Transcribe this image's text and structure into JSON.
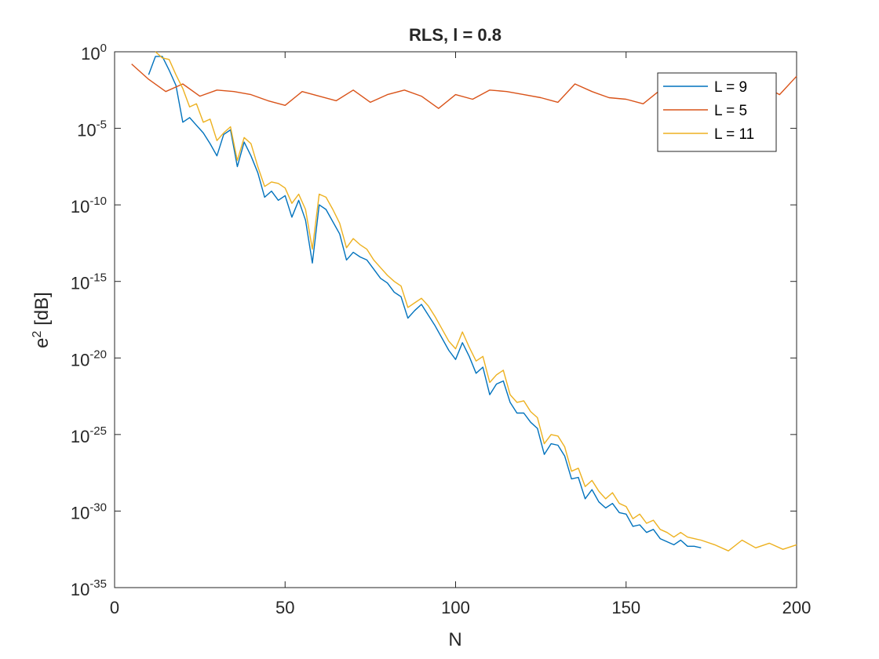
{
  "chart_data": {
    "type": "line",
    "title": "RLS, l = 0.8",
    "xlabel": "N",
    "ylabel": {
      "base": "e",
      "sup": "2",
      "rest": " [dB]"
    },
    "xlim": [
      0,
      200
    ],
    "ylim_exponent": [
      -35,
      0
    ],
    "yscale": "log",
    "grid": false,
    "xticks": [
      "0",
      "50",
      "100",
      "150",
      "200"
    ],
    "yticks": [
      {
        "base": "10",
        "exp": "0"
      },
      {
        "base": "10",
        "exp": "-5"
      },
      {
        "base": "10",
        "exp": "-10"
      },
      {
        "base": "10",
        "exp": "-15"
      },
      {
        "base": "10",
        "exp": "-20"
      },
      {
        "base": "10",
        "exp": "-25"
      },
      {
        "base": "10",
        "exp": "-30"
      },
      {
        "base": "10",
        "exp": "-35"
      }
    ],
    "legend_position": "top-right",
    "series": [
      {
        "name": "L = 9",
        "color": "#0072BD",
        "x": [
          10,
          12,
          14,
          16,
          18,
          20,
          22,
          24,
          26,
          28,
          30,
          32,
          34,
          36,
          38,
          40,
          42,
          44,
          46,
          48,
          50,
          52,
          54,
          56,
          58,
          60,
          62,
          64,
          66,
          68,
          70,
          72,
          74,
          76,
          78,
          80,
          82,
          84,
          86,
          88,
          90,
          92,
          94,
          96,
          98,
          100,
          102,
          104,
          106,
          108,
          110,
          112,
          114,
          116,
          118,
          120,
          122,
          124,
          126,
          128,
          130,
          132,
          134,
          136,
          138,
          140,
          142,
          144,
          146,
          148,
          150,
          152,
          154,
          156,
          158,
          160,
          162,
          164,
          166,
          168,
          170,
          172
        ],
        "y": [
          -1.5,
          -0.3,
          -0.3,
          -1.2,
          -2.2,
          -4.6,
          -4.3,
          -4.8,
          -5.3,
          -6.0,
          -6.8,
          -5.4,
          -5.1,
          -7.5,
          -5.9,
          -6.8,
          -7.9,
          -9.5,
          -9.1,
          -9.7,
          -9.4,
          -10.8,
          -9.7,
          -11.0,
          -13.8,
          -10.0,
          -10.3,
          -11.1,
          -11.9,
          -13.6,
          -13.1,
          -13.4,
          -13.6,
          -14.2,
          -14.8,
          -15.1,
          -15.7,
          -16.0,
          -17.4,
          -16.9,
          -16.5,
          -17.2,
          -17.9,
          -18.7,
          -19.5,
          -20.1,
          -19.0,
          -19.9,
          -21.0,
          -20.6,
          -22.4,
          -21.7,
          -21.5,
          -22.9,
          -23.6,
          -23.6,
          -24.2,
          -24.6,
          -26.3,
          -25.6,
          -25.7,
          -26.4,
          -27.9,
          -27.8,
          -29.2,
          -28.6,
          -29.4,
          -29.8,
          -29.5,
          -30.1,
          -30.2,
          -31.0,
          -30.9,
          -31.4,
          -31.2,
          -31.8,
          -32.0,
          -32.2,
          -31.9,
          -32.3,
          -32.3,
          -32.4
        ]
      },
      {
        "name": "L = 5",
        "color": "#D95319",
        "x": [
          5,
          10,
          15,
          20,
          25,
          30,
          35,
          40,
          45,
          50,
          55,
          60,
          65,
          70,
          75,
          80,
          85,
          90,
          95,
          100,
          105,
          110,
          115,
          120,
          125,
          130,
          135,
          140,
          145,
          150,
          155,
          160,
          165,
          170,
          175,
          180,
          185,
          190,
          195,
          200
        ],
        "y": [
          -0.8,
          -1.8,
          -2.6,
          -2.1,
          -2.9,
          -2.5,
          -2.6,
          -2.8,
          -3.2,
          -3.5,
          -2.6,
          -2.9,
          -3.2,
          -2.5,
          -3.3,
          -2.8,
          -2.5,
          -2.9,
          -3.7,
          -2.8,
          -3.1,
          -2.5,
          -2.6,
          -2.8,
          -3.0,
          -3.3,
          -2.1,
          -2.6,
          -3.0,
          -3.1,
          -3.4,
          -2.5,
          -3.2,
          -2.6,
          -3.1,
          -2.8,
          -3.1,
          -2.2,
          -2.8,
          -1.6
        ]
      },
      {
        "name": "L = 11",
        "color": "#EDB120",
        "x": [
          12,
          14,
          16,
          18,
          20,
          22,
          24,
          26,
          28,
          30,
          32,
          34,
          36,
          38,
          40,
          42,
          44,
          46,
          48,
          50,
          52,
          54,
          56,
          58,
          60,
          62,
          64,
          66,
          68,
          70,
          72,
          74,
          76,
          78,
          80,
          82,
          84,
          86,
          88,
          90,
          92,
          94,
          96,
          98,
          100,
          102,
          104,
          106,
          108,
          110,
          112,
          114,
          116,
          118,
          120,
          122,
          124,
          126,
          128,
          130,
          132,
          134,
          136,
          138,
          140,
          142,
          144,
          146,
          148,
          150,
          152,
          154,
          156,
          158,
          160,
          162,
          164,
          166,
          168,
          170,
          172,
          176,
          180,
          184,
          188,
          192,
          196,
          200
        ],
        "y": [
          0.0,
          -0.4,
          -0.5,
          -1.5,
          -2.4,
          -3.6,
          -3.4,
          -4.6,
          -4.4,
          -5.8,
          -5.3,
          -4.9,
          -7.1,
          -5.6,
          -6.0,
          -7.5,
          -8.8,
          -8.5,
          -8.6,
          -8.9,
          -9.9,
          -9.3,
          -10.3,
          -12.9,
          -9.3,
          -9.5,
          -10.3,
          -11.2,
          -12.8,
          -12.2,
          -12.6,
          -12.9,
          -13.6,
          -14.1,
          -14.6,
          -15.0,
          -15.3,
          -16.7,
          -16.4,
          -16.1,
          -16.6,
          -17.3,
          -18.1,
          -18.9,
          -19.4,
          -18.3,
          -19.3,
          -20.2,
          -19.9,
          -21.6,
          -21.1,
          -20.8,
          -22.4,
          -22.9,
          -22.8,
          -23.5,
          -23.9,
          -25.6,
          -25.0,
          -25.1,
          -25.8,
          -27.4,
          -27.2,
          -28.4,
          -28.0,
          -28.7,
          -29.2,
          -28.8,
          -29.5,
          -29.7,
          -30.5,
          -30.2,
          -30.8,
          -30.6,
          -31.2,
          -31.4,
          -31.7,
          -31.4,
          -31.7,
          -31.8,
          -31.9,
          -32.2,
          -32.6,
          -31.9,
          -32.4,
          -32.1,
          -32.5,
          -32.2
        ]
      }
    ]
  }
}
